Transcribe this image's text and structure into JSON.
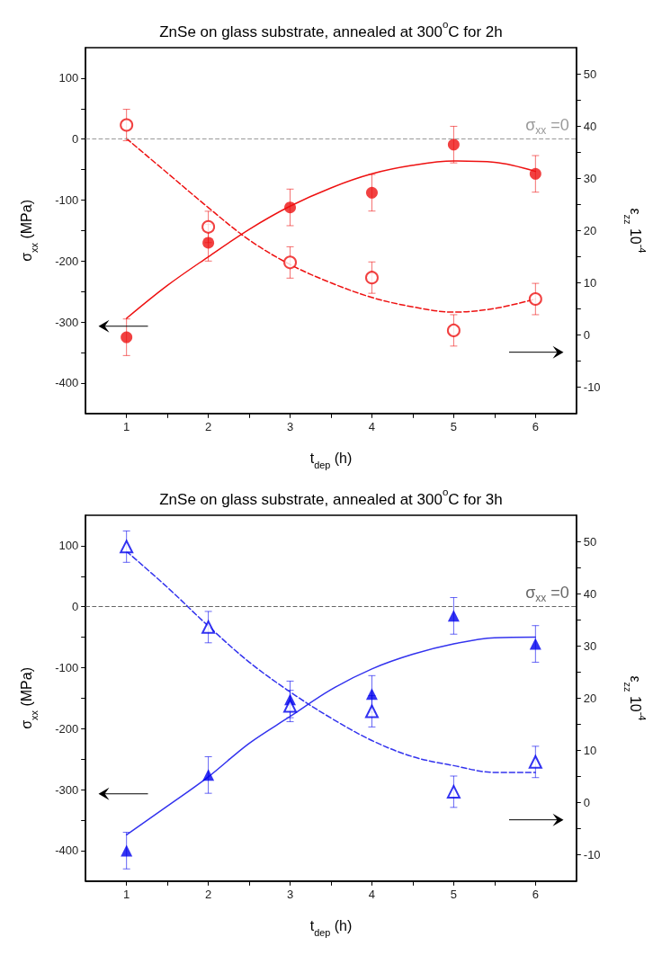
{
  "chart_data": [
    {
      "type": "scatter",
      "title": "ZnSe on glass substrate, annealed at 300$^{o}$C for 2h",
      "xlabel": "t$_{dep}$ (h)",
      "ylabel": "σ$_{xx}$ (MPa)",
      "y2label": "ε$_{zz}$ 10$^{-4}$",
      "x": [
        1,
        2,
        3,
        4,
        5,
        6
      ],
      "xlim": [
        0.5,
        6.5
      ],
      "xticks": [
        1,
        {
          "value": 1.5,
          "label": null
        },
        2,
        {
          "value": 2.5,
          "label": null
        },
        3,
        {
          "value": 3.5,
          "label": null
        },
        4,
        {
          "value": 4.5,
          "label": null
        },
        5,
        {
          "value": 5.5,
          "label": null
        },
        6
      ],
      "ylim": [
        -450,
        150
      ],
      "yticks": [
        -400,
        {
          "value": -350,
          "label": null
        },
        -300,
        {
          "value": -250,
          "label": null
        },
        -200,
        {
          "value": -150,
          "label": null
        },
        -100,
        {
          "value": -50,
          "label": null
        },
        0,
        {
          "value": 50,
          "label": null
        },
        100
      ],
      "y2lim": [
        -15,
        55
      ],
      "y2ticks": [
        -10,
        {
          "value": -5,
          "label": null
        },
        0,
        {
          "value": 5,
          "label": null
        },
        10,
        {
          "value": 15,
          "label": null
        },
        20,
        {
          "value": 25,
          "label": null
        },
        30,
        {
          "value": 35,
          "label": null
        },
        40,
        {
          "value": 45,
          "label": null
        },
        50
      ],
      "grid": false,
      "ref_lines": [
        {
          "axis": "y",
          "value": 0,
          "label": "σ$_{xx}$ =0",
          "color": "#999999",
          "line_style": "dashed"
        }
      ],
      "series": [
        {
          "color": "#ee1111",
          "marker": "circle",
          "values": [
            -325,
            -170,
            -112,
            -88,
            -9,
            -57
          ],
          "errors": [
            30,
            30,
            30,
            30,
            30,
            30
          ]
        },
        {
          "axis": "y2",
          "color": "#ee1111",
          "marker": "circle",
          "values": [
            40.2,
            20.7,
            13.9,
            11.0,
            0.9,
            6.9
          ],
          "errors": [
            3,
            3,
            3,
            3,
            3,
            3
          ]
        },
        {
          "type": "line",
          "color": "#ee1111",
          "line_style": "solid",
          "marker": "none",
          "x": [
            1,
            1.5,
            2,
            2.5,
            3,
            3.5,
            4,
            4.5,
            5,
            5.5,
            6
          ],
          "values": [
            -294,
            -240,
            -193,
            -148,
            -110,
            -80,
            -57,
            -43,
            -36,
            -38,
            -53
          ]
        },
        {
          "type": "line",
          "axis": "y2",
          "color": "#ee1111",
          "line_style": "dashed",
          "marker": "none",
          "x": [
            1,
            1.5,
            2,
            2.5,
            3,
            3.5,
            4,
            4.5,
            5,
            5.5,
            6
          ],
          "values": [
            37.6,
            31.0,
            24.4,
            18.2,
            13.5,
            10.0,
            7.2,
            5.4,
            4.4,
            5.1,
            6.9
          ]
        }
      ]
    },
    {
      "type": "scatter",
      "title": "ZnSe on glass substrate, annealed at 300$^{o}$C for 3h",
      "xlabel": "t$_{dep}$ (h)",
      "ylabel": "σ$_{xx}$ (MPa)",
      "y2label": "ε$_{zz}$ 10$^{-4}$",
      "x": [
        1,
        2,
        3,
        4,
        5,
        6
      ],
      "xlim": [
        0.5,
        6.5
      ],
      "xticks": [
        1,
        {
          "value": 1.5,
          "label": null
        },
        2,
        {
          "value": 2.5,
          "label": null
        },
        3,
        {
          "value": 3.5,
          "label": null
        },
        4,
        {
          "value": 4.5,
          "label": null
        },
        5,
        {
          "value": 5.5,
          "label": null
        },
        6
      ],
      "ylim": [
        -450,
        150
      ],
      "yticks": [
        -400,
        {
          "value": -350,
          "label": null
        },
        -300,
        {
          "value": -250,
          "label": null
        },
        -200,
        {
          "value": -150,
          "label": null
        },
        -100,
        {
          "value": -50,
          "label": null
        },
        0,
        {
          "value": 50,
          "label": null
        },
        100
      ],
      "y2lim": [
        -15,
        55
      ],
      "y2ticks": [
        -10,
        {
          "value": -5,
          "label": null
        },
        0,
        {
          "value": 5,
          "label": null
        },
        10,
        {
          "value": 15,
          "label": null
        },
        20,
        {
          "value": 25,
          "label": null
        },
        30,
        {
          "value": 35,
          "label": null
        },
        40,
        {
          "value": 45,
          "label": null
        },
        50
      ],
      "grid": false,
      "ref_lines": [
        {
          "axis": "y",
          "value": 0,
          "label": "σ$_{xx}$ =0",
          "color": "#666666",
          "line_style": "dashed"
        }
      ],
      "series": [
        {
          "color": "#0000ee",
          "marker": "triangle",
          "values": [
            -400,
            -276,
            -152,
            -143,
            -15,
            -61
          ],
          "errors": [
            30,
            30,
            30,
            30,
            30,
            30
          ]
        },
        {
          "axis": "y2",
          "color": "#0000ee",
          "marker": "triangle",
          "values": [
            49.0,
            33.6,
            18.5,
            17.5,
            2.1,
            7.8
          ],
          "errors": [
            3,
            3,
            3,
            3,
            3,
            3
          ]
        },
        {
          "type": "line",
          "color": "#3333ee",
          "line_style": "solid",
          "marker": "none",
          "x": [
            1,
            1.5,
            2,
            2.5,
            3,
            3.5,
            4,
            4.5,
            5,
            5.5,
            6
          ],
          "values": [
            -374,
            -327,
            -279,
            -224,
            -180,
            -136,
            -102,
            -78,
            -61,
            -51,
            -50
          ]
        },
        {
          "type": "line",
          "axis": "y2",
          "color": "#3333ee",
          "line_style": "dashed",
          "marker": "none",
          "x": [
            1,
            1.5,
            2,
            2.5,
            3,
            3.5,
            4,
            4.5,
            5,
            5.5,
            6
          ],
          "values": [
            48.1,
            41.2,
            33.8,
            26.9,
            21.2,
            16.2,
            11.9,
            8.8,
            7.1,
            5.8,
            5.8
          ]
        }
      ]
    }
  ]
}
